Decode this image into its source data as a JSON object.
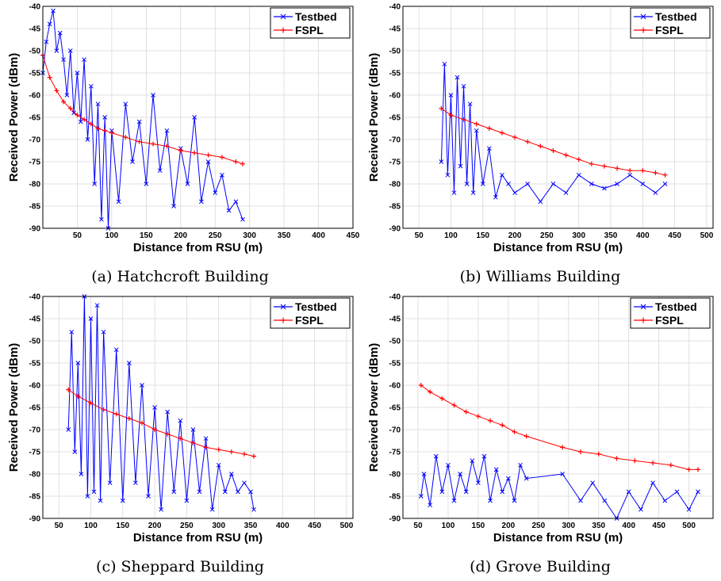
{
  "chart_data": [
    {
      "type": "line",
      "caption": "(a) Hatchcroft Building",
      "xlabel": "Distance from RSU (m)",
      "ylabel": "Received Power (dBm)",
      "xlim": [
        0,
        450
      ],
      "ylim": [
        -90,
        -40
      ],
      "xticks": [
        50,
        100,
        150,
        200,
        250,
        300,
        350,
        400,
        450
      ],
      "yticks": [
        -90,
        -85,
        -80,
        -75,
        -70,
        -65,
        -60,
        -55,
        -50,
        -45,
        -40
      ],
      "grid": true,
      "legend": "top-right",
      "series": [
        {
          "name": "Testbed",
          "color": "#0000ff",
          "marker": "x",
          "x": [
            0,
            5,
            10,
            15,
            20,
            25,
            30,
            35,
            40,
            45,
            50,
            55,
            60,
            65,
            70,
            75,
            80,
            85,
            90,
            95,
            100,
            110,
            120,
            130,
            140,
            150,
            160,
            170,
            180,
            190,
            200,
            210,
            220,
            230,
            240,
            250,
            260,
            270,
            280,
            290
          ],
          "y": [
            -55,
            -48,
            -44,
            -41,
            -50,
            -46,
            -52,
            -60,
            -50,
            -64,
            -55,
            -66,
            -52,
            -70,
            -58,
            -80,
            -62,
            -88,
            -65,
            -90,
            -68,
            -84,
            -62,
            -75,
            -66,
            -80,
            -60,
            -77,
            -68,
            -85,
            -72,
            -80,
            -65,
            -84,
            -75,
            -82,
            -78,
            -86,
            -84,
            -88
          ]
        },
        {
          "name": "FSPL",
          "color": "#ff0000",
          "marker": "+",
          "x": [
            0,
            10,
            20,
            30,
            40,
            50,
            60,
            70,
            80,
            90,
            100,
            120,
            140,
            160,
            180,
            200,
            220,
            240,
            260,
            280,
            290
          ],
          "y": [
            -51,
            -56,
            -59,
            -61.5,
            -63,
            -64.5,
            -65.5,
            -66.5,
            -67.5,
            -68,
            -68.5,
            -69.5,
            -70.5,
            -71,
            -71.5,
            -72.5,
            -73,
            -73.5,
            -74,
            -75,
            -75.5
          ]
        }
      ]
    },
    {
      "type": "line",
      "caption": "(b) Williams Building",
      "xlabel": "Distance from RSU (m)",
      "ylabel": "Received Power (dBm)",
      "xlim": [
        25,
        510
      ],
      "ylim": [
        -90,
        -40
      ],
      "xticks": [
        50,
        100,
        150,
        200,
        250,
        300,
        350,
        400,
        450,
        500
      ],
      "yticks": [
        -90,
        -85,
        -80,
        -75,
        -70,
        -65,
        -60,
        -55,
        -50,
        -45,
        -40
      ],
      "grid": true,
      "legend": "top-right",
      "series": [
        {
          "name": "Testbed",
          "color": "#0000ff",
          "marker": "x",
          "x": [
            85,
            90,
            95,
            100,
            105,
            110,
            115,
            120,
            125,
            130,
            135,
            140,
            150,
            160,
            170,
            180,
            190,
            200,
            220,
            240,
            260,
            280,
            300,
            320,
            340,
            360,
            380,
            400,
            420,
            435
          ],
          "y": [
            -75,
            -53,
            -78,
            -60,
            -82,
            -56,
            -76,
            -58,
            -80,
            -62,
            -82,
            -68,
            -80,
            -72,
            -83,
            -78,
            -80,
            -82,
            -80,
            -84,
            -80,
            -82,
            -78,
            -80,
            -81,
            -80,
            -78,
            -80,
            -82,
            -80
          ]
        },
        {
          "name": "FSPL",
          "color": "#ff0000",
          "marker": "+",
          "x": [
            85,
            100,
            120,
            140,
            160,
            180,
            200,
            220,
            240,
            260,
            280,
            300,
            320,
            340,
            360,
            380,
            400,
            420,
            435
          ],
          "y": [
            -63,
            -64.5,
            -65.5,
            -66.5,
            -67.5,
            -68.5,
            -69.5,
            -70.5,
            -71.5,
            -72.5,
            -73.5,
            -74.5,
            -75.5,
            -76,
            -76.5,
            -77,
            -77,
            -77.5,
            -78
          ]
        }
      ]
    },
    {
      "type": "line",
      "caption": "(c) Sheppard Building",
      "xlabel": "Distance from RSU (m)",
      "ylabel": "Received Power (dBm)",
      "xlim": [
        25,
        510
      ],
      "ylim": [
        -90,
        -40
      ],
      "xticks": [
        50,
        100,
        150,
        200,
        250,
        300,
        350,
        400,
        450,
        500
      ],
      "yticks": [
        -90,
        -85,
        -80,
        -75,
        -70,
        -65,
        -60,
        -55,
        -50,
        -45,
        -40
      ],
      "grid": true,
      "legend": "top-right",
      "series": [
        {
          "name": "Testbed",
          "color": "#0000ff",
          "marker": "x",
          "x": [
            65,
            70,
            75,
            80,
            85,
            90,
            95,
            100,
            105,
            110,
            115,
            120,
            130,
            140,
            150,
            160,
            170,
            180,
            190,
            200,
            210,
            220,
            230,
            240,
            250,
            260,
            270,
            280,
            290,
            300,
            310,
            320,
            330,
            340,
            350,
            355
          ],
          "y": [
            -70,
            -48,
            -75,
            -55,
            -80,
            -40,
            -85,
            -45,
            -84,
            -42,
            -86,
            -48,
            -82,
            -52,
            -86,
            -55,
            -82,
            -60,
            -85,
            -65,
            -88,
            -66,
            -84,
            -68,
            -86,
            -70,
            -84,
            -72,
            -88,
            -78,
            -84,
            -80,
            -84,
            -82,
            -84,
            -88
          ]
        },
        {
          "name": "FSPL",
          "color": "#ff0000",
          "marker": "+",
          "x": [
            65,
            80,
            100,
            120,
            140,
            160,
            180,
            200,
            220,
            240,
            260,
            280,
            300,
            320,
            340,
            355
          ],
          "y": [
            -61,
            -62.5,
            -64,
            -65.5,
            -66.5,
            -67.5,
            -68.5,
            -70,
            -71,
            -72,
            -73,
            -74,
            -74.5,
            -75,
            -75.5,
            -76
          ]
        }
      ]
    },
    {
      "type": "line",
      "caption": "(d) Grove Building",
      "xlabel": "Distance from RSU (m)",
      "ylabel": "Received Power (dBm)",
      "xlim": [
        25,
        540
      ],
      "ylim": [
        -90,
        -40
      ],
      "xticks": [
        50,
        100,
        150,
        200,
        250,
        300,
        350,
        400,
        450,
        500
      ],
      "yticks": [
        -90,
        -85,
        -80,
        -75,
        -70,
        -65,
        -60,
        -55,
        -50,
        -45,
        -40
      ],
      "grid": true,
      "legend": "top-right",
      "series": [
        {
          "name": "Testbed",
          "color": "#0000ff",
          "marker": "x",
          "x": [
            55,
            60,
            70,
            80,
            90,
            100,
            110,
            120,
            130,
            140,
            150,
            160,
            170,
            180,
            190,
            200,
            210,
            220,
            230,
            290,
            320,
            340,
            360,
            380,
            400,
            420,
            440,
            460,
            480,
            500,
            515
          ],
          "y": [
            -85,
            -80,
            -87,
            -76,
            -84,
            -78,
            -86,
            -80,
            -84,
            -77,
            -82,
            -76,
            -86,
            -79,
            -84,
            -81,
            -86,
            -78,
            -81,
            -80,
            -86,
            -82,
            -86,
            -90,
            -84,
            -88,
            -82,
            -86,
            -84,
            -88,
            -84
          ]
        },
        {
          "name": "FSPL",
          "color": "#ff0000",
          "marker": "+",
          "x": [
            55,
            70,
            90,
            110,
            130,
            150,
            170,
            190,
            210,
            230,
            290,
            320,
            350,
            380,
            410,
            440,
            470,
            500,
            515
          ],
          "y": [
            -60,
            -61.5,
            -63,
            -64.5,
            -66,
            -67,
            -68,
            -69,
            -70.5,
            -71.5,
            -74,
            -75,
            -75.5,
            -76.5,
            -77,
            -77.5,
            -78,
            -79,
            -79
          ]
        }
      ]
    }
  ]
}
